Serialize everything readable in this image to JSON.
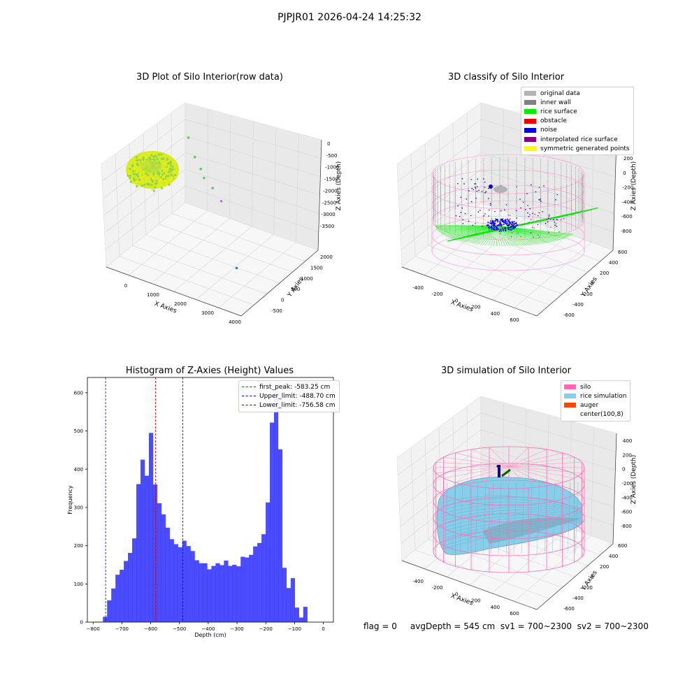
{
  "figure": {
    "suptitle": "PJPJR01 2026-04-24 14:25:32",
    "footer": "flag = 0     avgDepth = 545 cm  sv1 = 700~2300  sv2 = 700~2300"
  },
  "chart_data": [
    {
      "type": "scatter",
      "subtype": "3d",
      "title": "3D Plot of Silo Interior(row data)",
      "xlabel": "X Axies",
      "ylabel": "Y Axies",
      "zlabel": "Z Axies (Depth)",
      "x_ticks": [
        "0",
        "1000",
        "2000",
        "3000",
        "4000"
      ],
      "y_ticks": [
        "-500",
        "0",
        "500",
        "1000",
        "1500",
        "2000"
      ],
      "z_ticks": [
        "0",
        "-500",
        "-1000",
        "-1500",
        "-2000",
        "-2500",
        "-3000",
        "-3500"
      ],
      "outliers": [
        {
          "x": 900,
          "y": 1200,
          "z": -1000
        },
        {
          "x": 1300,
          "y": 1000,
          "z": -1500
        },
        {
          "x": 1600,
          "y": 900,
          "z": -1800
        },
        {
          "x": 1800,
          "y": 800,
          "z": -2000
        },
        {
          "x": 2200,
          "y": 700,
          "z": -2100
        },
        {
          "x": 2600,
          "y": 600,
          "z": -2400
        },
        {
          "x": 3900,
          "y": -300,
          "z": -3700
        }
      ],
      "colors": {
        "surface_light": "#e6ee1a",
        "surface_dark": "#8fd44a",
        "point": "#5cc86a"
      }
    },
    {
      "type": "scatter",
      "subtype": "3d",
      "title": "3D classify of Silo Interior",
      "xlabel": "X Axies",
      "ylabel": "Y Axies",
      "zlabel": "Z Axies (Depth)",
      "x_ticks": [
        "-400",
        "-200",
        "0",
        "200",
        "400",
        "600"
      ],
      "y_ticks": [
        "-600",
        "-400",
        "-200",
        "0",
        "200",
        "400",
        "600"
      ],
      "z_ticks": [
        "200",
        "0",
        "-200",
        "-400",
        "-600",
        "-800"
      ],
      "legend": [
        {
          "label": "original data",
          "color": "#b3b3b3"
        },
        {
          "label": "inner wall",
          "color": "#808080"
        },
        {
          "label": "rice surface",
          "color": "#00ee00"
        },
        {
          "label": "obstacle",
          "color": "#ee0000"
        },
        {
          "label": "noise",
          "color": "#0000ee"
        },
        {
          "label": "interpolated rice surface",
          "color": "#800080"
        },
        {
          "label": "symmetric generated points",
          "color": "#ffff00"
        }
      ],
      "legend_loc": "upper right"
    },
    {
      "type": "bar",
      "subtype": "histogram",
      "title": "Histogram of Z-Axies (Height) Values",
      "xlabel": "Depth (cm)",
      "ylabel": "Frequency",
      "xlim": [
        -820,
        35
      ],
      "ylim": [
        0,
        640
      ],
      "x_ticks": [
        "-800",
        "-700",
        "-600",
        "-500",
        "-400",
        "-300",
        "-200",
        "-100",
        "0"
      ],
      "y_ticks": [
        "0",
        "100",
        "200",
        "300",
        "400",
        "500",
        "600"
      ],
      "bin_start": -795,
      "bin_width": 14.5,
      "counts": [
        1,
        1,
        14,
        57,
        88,
        124,
        137,
        160,
        181,
        219,
        361,
        425,
        383,
        495,
        360,
        311,
        282,
        247,
        217,
        204,
        196,
        213,
        199,
        186,
        162,
        154,
        154,
        138,
        147,
        154,
        149,
        161,
        147,
        150,
        146,
        171,
        169,
        176,
        198,
        207,
        230,
        313,
        522,
        612,
        452,
        142,
        89,
        115,
        38,
        12,
        40
      ],
      "bar_color": "#0000ff",
      "vlines": [
        {
          "x": -583.25,
          "label": "first_peak: -583.25 cm",
          "color": "#cc0000"
        },
        {
          "x": -488.7,
          "label": "Upper_limit: -488.70 cm",
          "color": "#0000cc"
        },
        {
          "x": -756.58,
          "label": "Lower_limit: -756.58 cm",
          "color": "#0000cc"
        }
      ],
      "legend_loc": "upper right"
    },
    {
      "type": "scatter",
      "subtype": "3d-surface",
      "title": "3D simulation of Silo Interior",
      "xlabel": "X Axies",
      "ylabel": "Y Axies",
      "zlabel": "Z Axies (Depth)",
      "x_ticks": [
        "-400",
        "-200",
        "0",
        "200",
        "400",
        "600"
      ],
      "y_ticks": [
        "-600",
        "-400",
        "-200",
        "0",
        "200",
        "400",
        "600"
      ],
      "z_ticks": [
        "400",
        "200",
        "0",
        "-200",
        "-400",
        "-600",
        "-800"
      ],
      "legend": [
        {
          "label": "silo",
          "color": "#ff69b4"
        },
        {
          "label": "rice simulation",
          "color": "#87ceeb"
        },
        {
          "label": "auger",
          "color": "#ff4500"
        },
        {
          "label": "center(100,8)",
          "color": "#ffffff"
        }
      ],
      "legend_loc": "upper right"
    }
  ]
}
